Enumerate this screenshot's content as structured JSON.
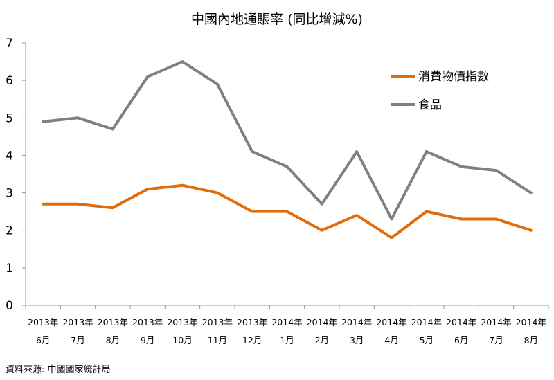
{
  "chart_data": {
    "type": "line",
    "title": "中國內地通賬率 (同比增減%)",
    "categories": [
      [
        "2013年",
        "6月"
      ],
      [
        "2013年",
        "7月"
      ],
      [
        "2013年",
        "8月"
      ],
      [
        "2013年",
        "9月"
      ],
      [
        "2013年",
        "10月"
      ],
      [
        "2013年",
        "11月"
      ],
      [
        "2013年",
        "12月"
      ],
      [
        "2014年",
        "1月"
      ],
      [
        "2014年",
        "2月"
      ],
      [
        "2014年",
        "3月"
      ],
      [
        "2014年",
        "4月"
      ],
      [
        "2014年",
        "5月"
      ],
      [
        "2014年",
        "6月"
      ],
      [
        "2014年",
        "7月"
      ],
      [
        "2014年",
        "8月"
      ]
    ],
    "series": [
      {
        "name": "消費物價指數",
        "color": "#e36c0a",
        "values": [
          2.7,
          2.7,
          2.6,
          3.1,
          3.2,
          3.0,
          2.5,
          2.5,
          2.0,
          2.4,
          1.8,
          2.5,
          2.3,
          2.3,
          2.0
        ]
      },
      {
        "name": "食品",
        "color": "#808080",
        "values": [
          4.9,
          5.0,
          4.7,
          6.1,
          6.5,
          5.9,
          4.1,
          3.7,
          2.7,
          4.1,
          2.3,
          4.1,
          3.7,
          3.6,
          3.0
        ]
      }
    ],
    "ylim": [
      0,
      7
    ],
    "yticks": [
      0,
      1,
      2,
      3,
      4,
      5,
      6,
      7
    ],
    "xlabel": "",
    "ylabel": "",
    "grid": false,
    "legend_position": "top-right",
    "source": "資料來源: 中國國家統計局"
  }
}
